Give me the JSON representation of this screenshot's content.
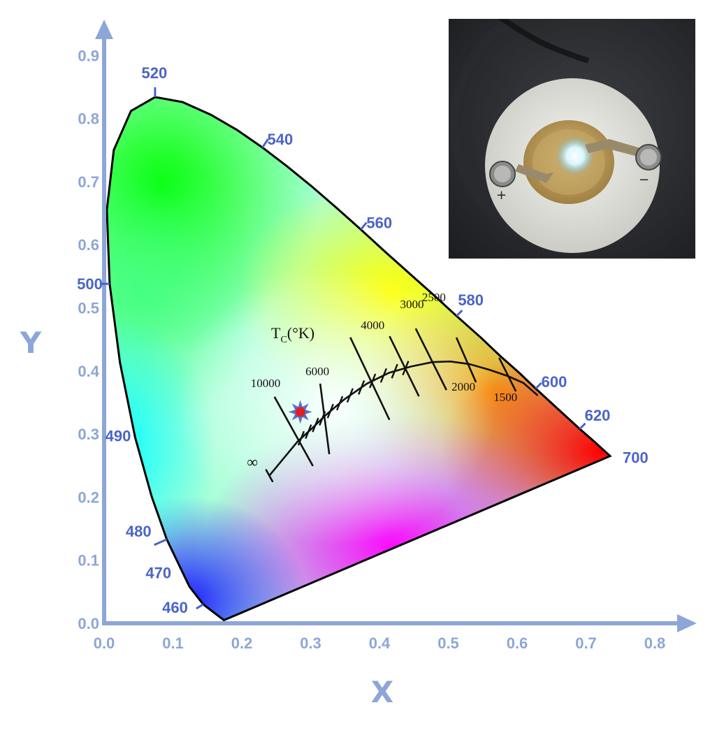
{
  "chart_data": {
    "type": "scatter",
    "title": "",
    "xlabel": "X",
    "ylabel": "Y",
    "xlim": [
      0.0,
      0.8
    ],
    "ylim": [
      0.0,
      0.9
    ],
    "x_ticks": [
      "0.0",
      "0.1",
      "0.2",
      "0.3",
      "0.4",
      "0.5",
      "0.6",
      "0.7",
      "0.8"
    ],
    "y_ticks": [
      "0.0",
      "0.1",
      "0.2",
      "0.3",
      "0.4",
      "0.5",
      "0.6",
      "0.7",
      "0.8",
      "0.9"
    ],
    "grid": false,
    "wavelength_labels": [
      {
        "label": "460",
        "x": 0.144,
        "y": 0.03
      },
      {
        "label": "470",
        "x": 0.124,
        "y": 0.058
      },
      {
        "label": "480",
        "x": 0.091,
        "y": 0.133
      },
      {
        "label": "490",
        "x": 0.045,
        "y": 0.295
      },
      {
        "label": "500",
        "x": 0.008,
        "y": 0.538
      },
      {
        "label": "520",
        "x": 0.074,
        "y": 0.834
      },
      {
        "label": "540",
        "x": 0.23,
        "y": 0.754
      },
      {
        "label": "560",
        "x": 0.373,
        "y": 0.624
      },
      {
        "label": "580",
        "x": 0.512,
        "y": 0.487
      },
      {
        "label": "600",
        "x": 0.627,
        "y": 0.372
      },
      {
        "label": "620",
        "x": 0.691,
        "y": 0.308
      },
      {
        "label": "700",
        "x": 0.735,
        "y": 0.265
      }
    ],
    "planckian_locus": {
      "title": "Tₑ(°K)",
      "title_main": "T",
      "title_sub": "C",
      "title_rest": "(°K)",
      "points": [
        [
          0.24,
          0.234
        ],
        [
          0.265,
          0.267
        ],
        [
          0.281,
          0.288
        ],
        [
          0.302,
          0.309
        ],
        [
          0.322,
          0.33
        ],
        [
          0.349,
          0.355
        ],
        [
          0.382,
          0.38
        ],
        [
          0.414,
          0.397
        ],
        [
          0.446,
          0.407
        ],
        [
          0.477,
          0.414
        ],
        [
          0.503,
          0.415
        ],
        [
          0.53,
          0.411
        ],
        [
          0.559,
          0.402
        ],
        [
          0.586,
          0.392
        ],
        [
          0.609,
          0.381
        ],
        [
          0.63,
          0.361
        ]
      ],
      "infinity_label": "∞",
      "isotherms": [
        {
          "label": "10000",
          "x": 0.281,
          "y": 0.288
        },
        {
          "label": "6000",
          "x": 0.322,
          "y": 0.33
        },
        {
          "label": "4000",
          "x": 0.382,
          "y": 0.38
        },
        {
          "label": "3000",
          "x": 0.437,
          "y": 0.404
        },
        {
          "label": "2500",
          "x": 0.477,
          "y": 0.414
        },
        {
          "label": "2000",
          "x": 0.526,
          "y": 0.413
        },
        {
          "label": "1500",
          "x": 0.586,
          "y": 0.392
        }
      ]
    },
    "measured_point": {
      "x": 0.285,
      "y": 0.335,
      "color": "#e02020",
      "star_color": "#5b6fd0"
    },
    "colors": {
      "axis": "#8da6d8",
      "wavelength_labels": "#4a64c8",
      "locus": "#111111"
    }
  },
  "photo": {
    "plus_label": "+",
    "minus_label": "−"
  }
}
